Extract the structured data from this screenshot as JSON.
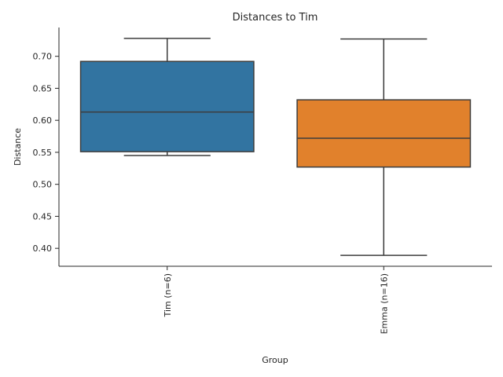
{
  "chart_data": {
    "type": "box",
    "title": "Distances to Tim",
    "xlabel": "Group",
    "ylabel": "Distance",
    "ylim": [
      0.372,
      0.745
    ],
    "yticks": [
      0.4,
      0.45,
      0.5,
      0.55,
      0.6,
      0.65,
      0.7
    ],
    "ytick_labels": [
      "0.40",
      "0.45",
      "0.50",
      "0.55",
      "0.60",
      "0.65",
      "0.70"
    ],
    "grid": false,
    "groups": [
      {
        "label": "Tim (n=6)",
        "whisker_low": 0.545,
        "q1": 0.551,
        "median": 0.613,
        "q3": 0.692,
        "whisker_high": 0.728,
        "color": "#3274a1"
      },
      {
        "label": "Emma (n=16)",
        "whisker_low": 0.389,
        "q1": 0.527,
        "median": 0.572,
        "q3": 0.632,
        "whisker_high": 0.727,
        "color": "#e1812c"
      }
    ]
  }
}
